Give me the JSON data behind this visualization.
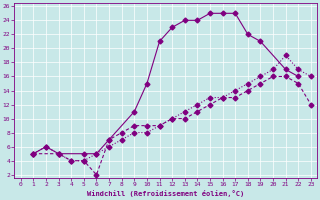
{
  "xlabel": "Windchill (Refroidissement éolien,°C)",
  "bg_color": "#c8e8e8",
  "line_color": "#800080",
  "xlim": [
    -0.5,
    23.5
  ],
  "ylim": [
    1.5,
    26.5
  ],
  "xticks": [
    0,
    1,
    2,
    3,
    4,
    5,
    6,
    7,
    8,
    9,
    10,
    11,
    12,
    13,
    14,
    15,
    16,
    17,
    18,
    19,
    20,
    21,
    22,
    23
  ],
  "yticks": [
    2,
    4,
    6,
    8,
    10,
    12,
    14,
    16,
    18,
    20,
    22,
    24,
    26
  ],
  "line1_x": [
    1,
    2,
    3,
    5,
    6,
    7,
    9,
    10,
    11,
    12,
    13,
    14,
    15,
    16,
    17,
    18,
    19,
    21,
    22
  ],
  "line1_y": [
    5,
    6,
    5,
    5,
    5,
    7,
    11,
    15,
    21,
    23,
    24,
    24,
    25,
    25,
    25,
    22,
    21,
    17,
    16
  ],
  "line2_x": [
    1,
    3,
    4,
    5,
    6,
    7,
    8,
    9,
    10,
    11,
    12,
    13,
    14,
    15,
    16,
    17,
    18,
    19,
    20,
    21,
    22,
    23
  ],
  "line2_y": [
    5,
    5,
    4,
    4,
    2,
    7,
    8,
    9,
    9,
    9,
    10,
    10,
    11,
    12,
    13,
    13,
    14,
    15,
    16,
    16,
    15,
    12
  ],
  "line3_x": [
    1,
    2,
    3,
    4,
    5,
    6,
    7,
    8,
    9,
    10,
    11,
    12,
    13,
    14,
    15,
    16,
    17,
    18,
    19,
    20,
    21,
    22,
    23
  ],
  "line3_y": [
    5,
    6,
    5,
    4,
    4,
    5,
    6,
    7,
    8,
    8,
    9,
    10,
    11,
    12,
    13,
    13,
    14,
    15,
    16,
    17,
    19,
    17,
    16
  ]
}
